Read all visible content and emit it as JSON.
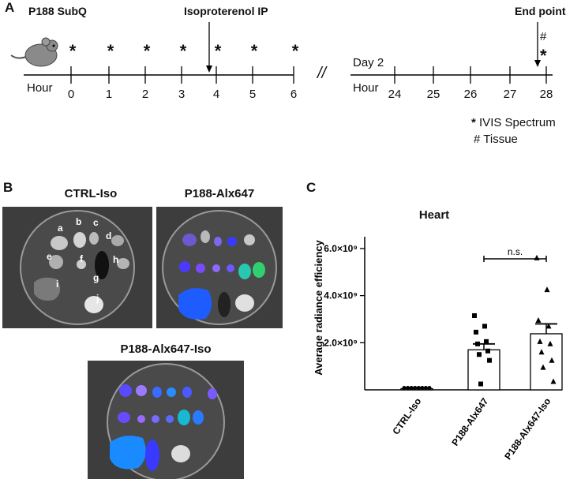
{
  "panelA": {
    "letter": "A",
    "p188_label": "P188 SubQ",
    "iso_label": "Isoproterenol IP",
    "endpoint_label": "End point",
    "hour_label_left": "Hour",
    "hour_label_right": "Hour",
    "day_label": "Day 2",
    "break_symbol": "//",
    "ticks_left": [
      "0",
      "1",
      "2",
      "3",
      "4",
      "5",
      "6"
    ],
    "ticks_right": [
      "24",
      "25",
      "26",
      "27",
      "28"
    ],
    "star_symbol": "*",
    "hash_symbol": "#",
    "legend_ivis": "IVIS Spectrum",
    "legend_tissue": "Tissue",
    "legend_star": "*",
    "legend_hash": "#",
    "mouse_icon": "mouse-icon"
  },
  "panelB": {
    "letter": "B",
    "dish1_title": "CTRL-Iso",
    "dish2_title": "P188-Alx647",
    "dish3_title": "P188-Alx647-Iso",
    "organ_labels": [
      "a",
      "b",
      "c",
      "d",
      "e",
      "f",
      "g",
      "h",
      "i",
      "j"
    ]
  },
  "panelC": {
    "letter": "C",
    "chart_data": {
      "type": "bar",
      "title": "Heart",
      "ylabel": "Average radiance efficiency",
      "categories": [
        "CTRL-Iso",
        "P188-Alx647",
        "P188-Alx647-Iso"
      ],
      "values": [
        50000000.0,
        1700000000.0,
        2380000000.0
      ],
      "errors": [
        20000000.0,
        250000000.0,
        420000000.0
      ],
      "ylim": [
        0,
        6500000000.0
      ],
      "ytick_values": [
        2000000000.0,
        4000000000.0,
        6000000000.0
      ],
      "ytick_labels": [
        "2.0×10⁹",
        "4.0×10⁹",
        "6.0×10⁹"
      ],
      "annotation": "n.s.",
      "points": [
        [
          50000000.0,
          50000000.0,
          50000000.0,
          50000000.0,
          50000000.0,
          50000000.0,
          50000000.0,
          50000000.0
        ],
        [
          3150000000.0,
          2700000000.0,
          2450000000.0,
          2050000000.0,
          1950000000.0,
          1650000000.0,
          1500000000.0,
          1250000000.0,
          250000000.0
        ],
        [
          5600000000.0,
          4250000000.0,
          2950000000.0,
          2700000000.0,
          2050000000.0,
          1950000000.0,
          1600000000.0,
          1250000000.0,
          950000000.0,
          350000000.0
        ]
      ],
      "markers": [
        "circle",
        "square",
        "triangle"
      ],
      "bar_color": "#ffffff",
      "marker_color": "#000000",
      "grid": false,
      "legend": "none"
    }
  }
}
